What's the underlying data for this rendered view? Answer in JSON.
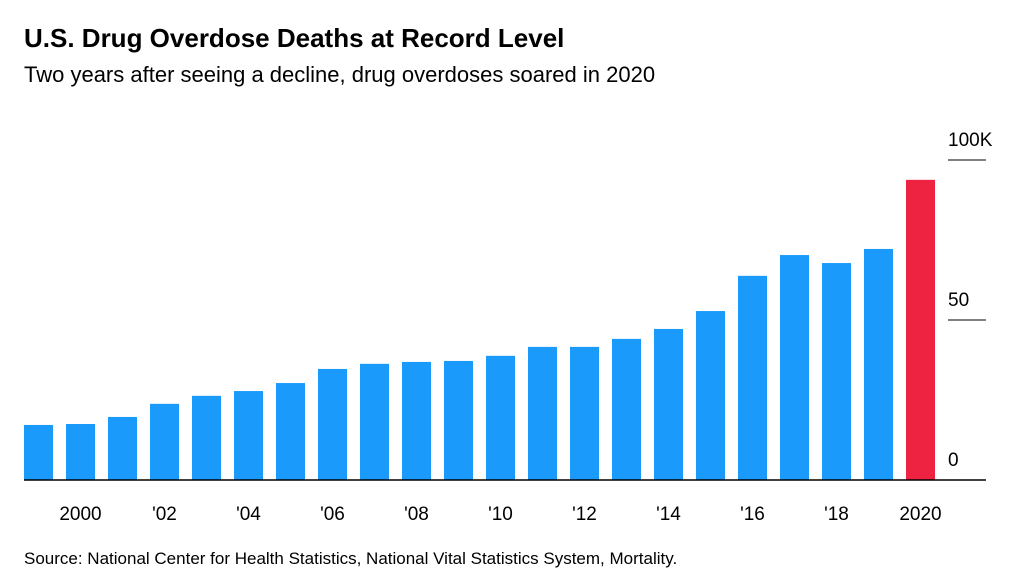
{
  "chart_data": {
    "type": "bar",
    "title": "U.S. Drug Overdose Deaths at Record Level",
    "subtitle": "Two years after seeing a decline, drug overdoses soared in 2020",
    "source": "Source: National Center for Health Statistics, National Vital Statistics System, Mortality.",
    "categories": [
      null,
      "2000",
      null,
      "'02",
      null,
      "'04",
      null,
      "'06",
      null,
      "'08",
      null,
      "'10",
      null,
      "'12",
      null,
      "'14",
      null,
      "'16",
      null,
      "'18",
      null,
      "2020"
    ],
    "values": [
      17.2,
      17.5,
      19.7,
      23.8,
      26.3,
      27.8,
      30.3,
      34.7,
      36.3,
      36.9,
      37.2,
      38.8,
      41.6,
      41.6,
      44.1,
      47.2,
      52.8,
      63.8,
      70.3,
      67.8,
      72.2,
      93.8
    ],
    "colors": [
      "#1a9bfc",
      "#1a9bfc",
      "#1a9bfc",
      "#1a9bfc",
      "#1a9bfc",
      "#1a9bfc",
      "#1a9bfc",
      "#1a9bfc",
      "#1a9bfc",
      "#1a9bfc",
      "#1a9bfc",
      "#1a9bfc",
      "#1a9bfc",
      "#1a9bfc",
      "#1a9bfc",
      "#1a9bfc",
      "#1a9bfc",
      "#1a9bfc",
      "#1a9bfc",
      "#1a9bfc",
      "#1a9bfc",
      "#ee2241"
    ],
    "ylim": [
      0,
      100
    ],
    "yticks": [
      0,
      50,
      {
        "value": 100,
        "label": "100K"
      }
    ]
  }
}
